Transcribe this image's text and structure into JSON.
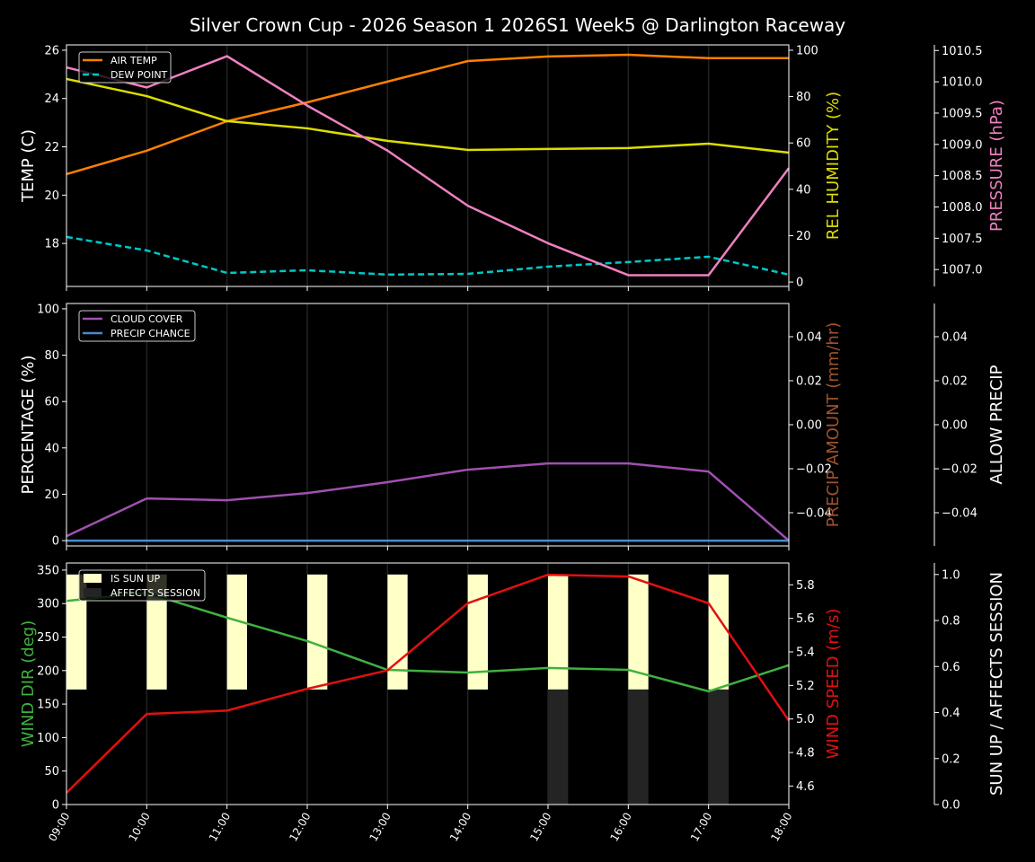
{
  "title": "Silver Crown Cup - 2026 Season 1 2026S1 Week5 @ Darlington Raceway",
  "chart_data": [
    {
      "type": "line",
      "x": [
        "09:00",
        "10:00",
        "11:00",
        "12:00",
        "13:00",
        "14:00",
        "15:00",
        "16:00",
        "17:00",
        "18:00"
      ],
      "grid": "vertical",
      "legend": {
        "placement": "top-left",
        "entries": [
          "AIR TEMP",
          "DEW POINT"
        ]
      },
      "axes": {
        "left": {
          "label": "TEMP (C)",
          "color": "#ffffff",
          "ylim": [
            16.22,
            26.22
          ],
          "ticks": [
            18,
            20,
            22,
            24,
            26
          ],
          "tick_labels": [
            "18",
            "20",
            "22",
            "24",
            "26"
          ]
        },
        "right": {
          "label": "REL HUMIDITY (%)",
          "color": "#dddd00",
          "ylim": [
            -1.9,
            102.3
          ],
          "ticks": [
            0,
            20,
            40,
            60,
            80,
            100
          ],
          "tick_labels": [
            "0",
            "20",
            "40",
            "60",
            "80",
            "100"
          ]
        },
        "far_right": {
          "label": "PRESSURE (hPa)",
          "color": "#f080c0",
          "ylim": [
            1006.73,
            1010.59
          ],
          "ticks": [
            1007.0,
            1007.5,
            1008.0,
            1008.5,
            1009.0,
            1009.5,
            1010.0,
            1010.5
          ],
          "tick_labels": [
            "1007.0",
            "1007.5",
            "1008.0",
            "1008.5",
            "1009.0",
            "1009.5",
            "1010.0",
            "1010.5"
          ]
        }
      },
      "series": [
        {
          "name": "AIR TEMP",
          "axis": "left",
          "style": "line",
          "color": "#ff8000",
          "values": [
            20.87,
            21.84,
            23.06,
            23.84,
            24.7,
            25.55,
            25.74,
            25.81,
            25.67,
            25.67
          ]
        },
        {
          "name": "DEW POINT",
          "axis": "left",
          "style": "dashed",
          "color": "#00c8c8",
          "values": [
            18.27,
            17.71,
            16.78,
            16.89,
            16.71,
            16.74,
            17.04,
            17.23,
            17.45,
            16.71
          ]
        },
        {
          "axis": "right",
          "style": "line",
          "color": "#dddd00",
          "values": [
            87.6,
            80.2,
            69.4,
            66.3,
            60.9,
            57.0,
            57.4,
            57.8,
            59.7,
            55.8
          ]
        },
        {
          "axis": "far_right",
          "style": "line",
          "color": "#f080c0",
          "values": [
            1010.23,
            1009.91,
            1010.41,
            1009.62,
            1008.9,
            1008.02,
            1007.42,
            1006.91,
            1006.91,
            1008.62
          ]
        }
      ]
    },
    {
      "type": "line",
      "x": [
        "09:00",
        "10:00",
        "11:00",
        "12:00",
        "13:00",
        "14:00",
        "15:00",
        "16:00",
        "17:00",
        "18:00"
      ],
      "grid": "vertical",
      "legend": {
        "placement": "top-left",
        "entries": [
          "CLOUD COVER",
          "PRECIP CHANCE"
        ]
      },
      "axes": {
        "left": {
          "label": "PERCENTAGE (%)",
          "color": "#ffffff",
          "ylim": [
            -2.3,
            102.3
          ],
          "ticks": [
            0,
            20,
            40,
            60,
            80,
            100
          ],
          "tick_labels": [
            "0",
            "20",
            "40",
            "60",
            "80",
            "100"
          ]
        },
        "right": {
          "label": "PRECIP AMOUNT (mm/hr)",
          "color": "#a0522d",
          "ylim": [
            -0.0551,
            0.0551
          ],
          "ticks": [
            -0.04,
            -0.02,
            0,
            0.02,
            0.04
          ],
          "tick_labels": [
            "−0.04",
            "−0.02",
            "0.00",
            "0.02",
            "0.04"
          ]
        },
        "far_right": {
          "label": "ALLOW PRECIP",
          "color": "#ffffff",
          "ylim": [
            -0.0551,
            0.0551
          ],
          "ticks": [
            -0.04,
            -0.02,
            0,
            0.02,
            0.04
          ],
          "tick_labels": [
            "−0.04",
            "−0.02",
            "0.00",
            "0.02",
            "0.04"
          ]
        }
      },
      "series": [
        {
          "name": "CLOUD COVER",
          "axis": "left",
          "style": "line",
          "color": "#a050b0",
          "values": [
            1.9,
            18.2,
            17.4,
            20.5,
            25.2,
            30.6,
            33.3,
            33.3,
            29.8,
            0
          ]
        },
        {
          "name": "PRECIP CHANCE",
          "axis": "left",
          "style": "line",
          "color": "#4a8ad0",
          "values": [
            0,
            0,
            0,
            0,
            0,
            0,
            0,
            0,
            0,
            0
          ]
        }
      ]
    },
    {
      "type": "line",
      "x": [
        "09:00",
        "10:00",
        "11:00",
        "12:00",
        "13:00",
        "14:00",
        "15:00",
        "16:00",
        "17:00",
        "18:00"
      ],
      "grid": "vertical",
      "legend": {
        "placement": "top-left",
        "entries": [
          "IS SUN UP",
          "AFFECTS SESSION"
        ]
      },
      "axes": {
        "left": {
          "label": "WIND DIR (deg)",
          "color": "#40b040",
          "ylim": [
            0,
            360.6
          ],
          "ticks": [
            0,
            50,
            100,
            150,
            200,
            250,
            300,
            350
          ],
          "tick_labels": [
            "0",
            "50",
            "100",
            "150",
            "200",
            "250",
            "300",
            "350"
          ]
        },
        "right": {
          "label": "WIND SPEED (m/s)",
          "color": "#e01010",
          "ylim": [
            4.49,
            5.93
          ],
          "ticks": [
            4.6,
            4.8,
            5.0,
            5.2,
            5.4,
            5.6,
            5.8
          ],
          "tick_labels": [
            "4.6",
            "4.8",
            "5.0",
            "5.2",
            "5.4",
            "5.6",
            "5.8"
          ]
        },
        "far_right": {
          "label": "SUN UP / AFFECTS SESSION",
          "color": "#ffffff",
          "ylim": [
            0,
            1.05
          ],
          "ticks": [
            0,
            0.2,
            0.4,
            0.6,
            0.8,
            1.0
          ],
          "tick_labels": [
            "0.0",
            "0.2",
            "0.4",
            "0.6",
            "0.8",
            "1.0"
          ]
        }
      },
      "series": [
        {
          "name": "IS SUN UP",
          "axis": "far_right",
          "style": "bar",
          "base": 0.5,
          "color": "#ffffc8",
          "values": [
            1,
            1,
            1,
            1,
            1,
            1,
            1,
            1,
            1,
            0
          ]
        },
        {
          "name": "AFFECTS SESSION",
          "axis": "far_right",
          "style": "bar",
          "base": 0,
          "bar_top": 0.5,
          "color": "#242424",
          "values": [
            0,
            0,
            0,
            0,
            0,
            0,
            1,
            1,
            1,
            0
          ]
        },
        {
          "axis": "left",
          "style": "line",
          "color": "#40b040",
          "values": [
            304,
            316,
            279,
            244,
            201,
            197,
            204,
            201,
            169,
            208
          ]
        },
        {
          "axis": "right",
          "style": "line",
          "color": "#e01010",
          "values": [
            4.56,
            5.03,
            5.05,
            5.18,
            5.29,
            5.69,
            5.86,
            5.85,
            5.69,
            4.99
          ]
        }
      ]
    }
  ]
}
